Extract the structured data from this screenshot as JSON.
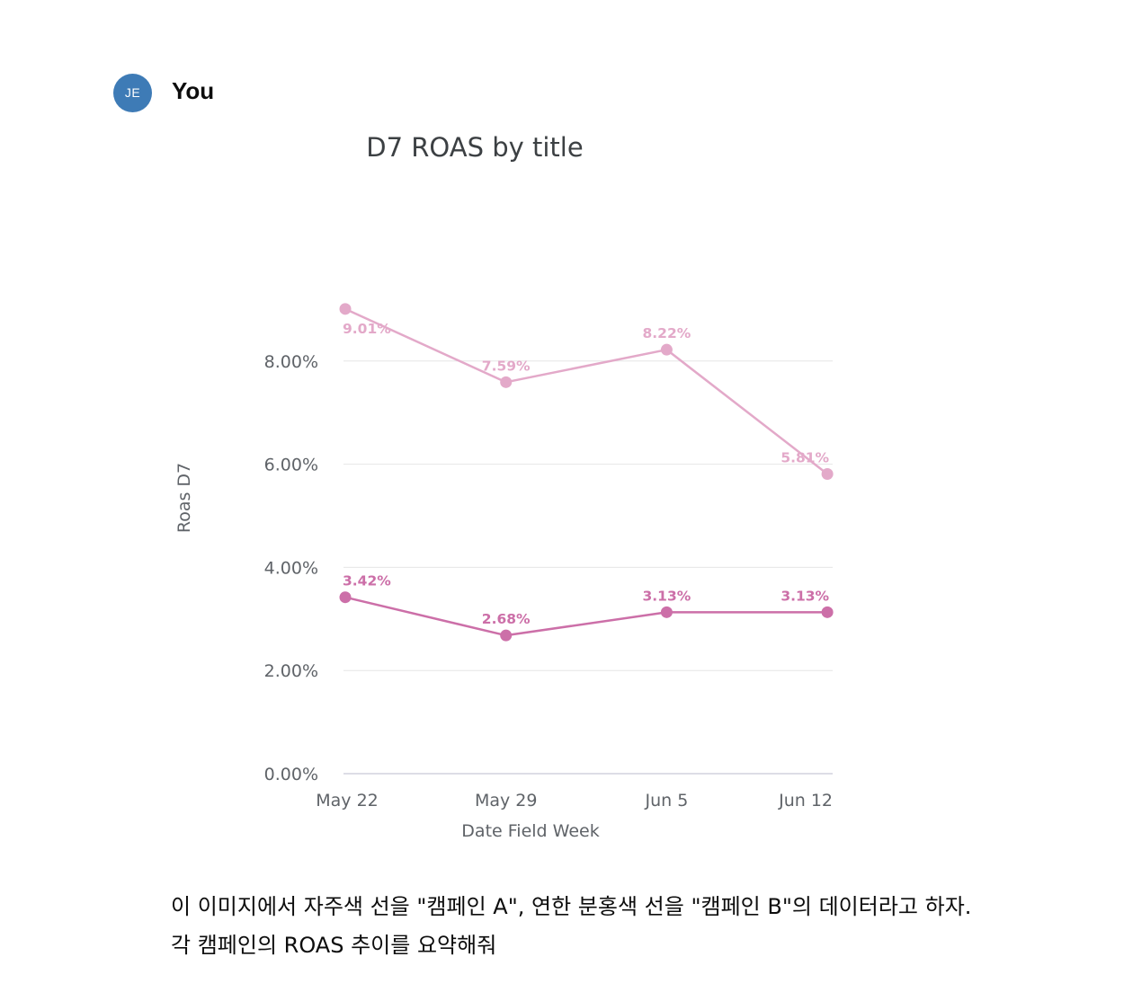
{
  "message": {
    "avatar_initials": "JE",
    "author": "You",
    "text_lines": [
      "이 이미지에서 자주색 선을 \"캠페인 A\", 연한 분홍색 선을 \"캠페인 B\"의 데이터라고 하자.",
      "각 캠페인의 ROAS 추이를 요약해줘"
    ]
  },
  "colors": {
    "avatar": "#3e7bb6",
    "series_dark": "#cc6fa8",
    "series_light": "#e3a9c9",
    "grid": "#e6e6e6"
  },
  "chart_data": {
    "type": "line",
    "title": "D7 ROAS by title",
    "xlabel": "Date Field Week",
    "ylabel": "Roas D7",
    "categories": [
      "May 22",
      "May 29",
      "Jun 5",
      "Jun 12"
    ],
    "ylim": [
      0,
      10
    ],
    "yticks": [
      0,
      2,
      4,
      6,
      8
    ],
    "ytick_labels": [
      "0.00%",
      "2.00%",
      "4.00%",
      "6.00%",
      "8.00%"
    ],
    "grid": true,
    "legend": "none",
    "series": [
      {
        "color": "#e3a9c9",
        "values": [
          9.01,
          7.59,
          8.22,
          5.81
        ],
        "labels": [
          "9.01%",
          "7.59%",
          "8.22%",
          "5.81%"
        ]
      },
      {
        "color": "#cc6fa8",
        "values": [
          3.42,
          2.68,
          3.13,
          3.13
        ],
        "labels": [
          "3.42%",
          "2.68%",
          "3.13%",
          "3.13%"
        ]
      }
    ]
  }
}
